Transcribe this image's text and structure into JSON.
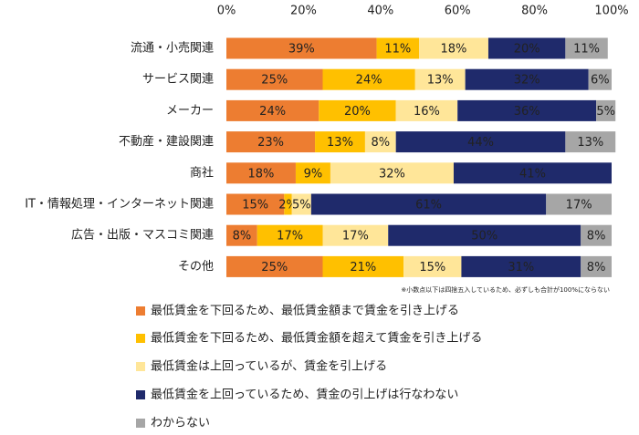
{
  "chart_data": {
    "type": "stacked_barh",
    "categories": [
      "流通・小売関連",
      "サービス関連",
      "メーカー",
      "不動産・建設関連",
      "商社",
      "IT・情報処理・インターネット関連",
      "広告・出版・マスコミ関連",
      "その他"
    ],
    "series": [
      {
        "name": "最低賃金を下回るため、最低賃金額まで賃金を引き上げる",
        "color": "#ED7D31",
        "values": [
          39,
          25,
          24,
          23,
          18,
          15,
          8,
          25
        ],
        "value_labels": [
          "39%",
          "25%",
          "24%",
          "23%",
          "18%",
          "15%",
          "8%",
          "25%"
        ]
      },
      {
        "name": "最低賃金を下回るため、最低賃金額を超えて賃金を引き上げる",
        "color": "#FFC000",
        "values": [
          11,
          24,
          20,
          13,
          9,
          2,
          17,
          21
        ],
        "value_labels": [
          "11%",
          "24%",
          "20%",
          "13%",
          "9%",
          "2%",
          "17%",
          "21%"
        ]
      },
      {
        "name": "最低賃金は上回っているが、賃金を引上げる",
        "color": "#FFE699",
        "values": [
          18,
          13,
          16,
          8,
          32,
          5,
          17,
          15
        ],
        "value_labels": [
          "18%",
          "13%",
          "16%",
          "8%",
          "32%",
          "5%",
          "17%",
          "15%"
        ]
      },
      {
        "name": "最低賃金を上回っているため、賃金の引上げは行なわない",
        "color": "#1F2A6B",
        "values": [
          20,
          32,
          36,
          44,
          41,
          61,
          50,
          31
        ],
        "value_labels": [
          "20%",
          "32%",
          "36%",
          "44%",
          "41%",
          "61%",
          "50%",
          "31%"
        ]
      },
      {
        "name": "わからない",
        "color": "#A6A6A6",
        "values": [
          11,
          6,
          5,
          13,
          null,
          17,
          8,
          8
        ],
        "value_labels": [
          "11%",
          "6%",
          "5%",
          "13%",
          null,
          "17%",
          "8%",
          "8%"
        ]
      }
    ],
    "xlim": [
      0,
      100
    ],
    "xticks": [
      {
        "value": 0,
        "label": "0%"
      },
      {
        "value": 20,
        "label": "20%"
      },
      {
        "value": 40,
        "label": "40%"
      },
      {
        "value": 60,
        "label": "60%"
      },
      {
        "value": 80,
        "label": "80%"
      },
      {
        "value": 100,
        "label": "100%"
      }
    ],
    "note": "※小数点以下は四捨五入しているため、必ずしも合計が100%にならない"
  }
}
